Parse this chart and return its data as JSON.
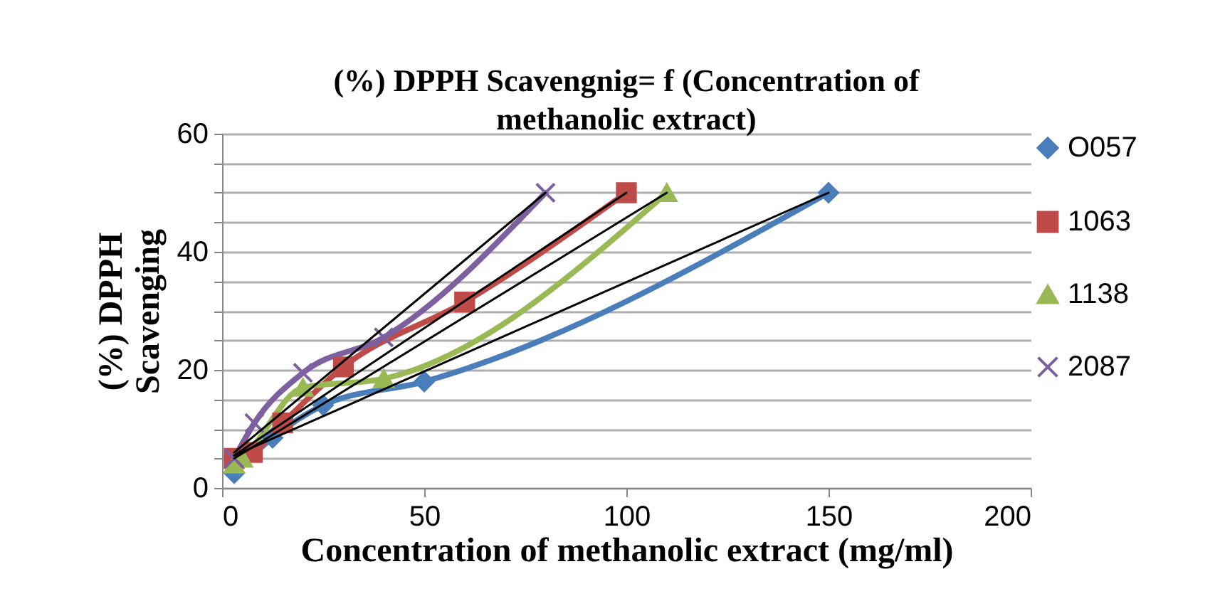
{
  "chart_data": {
    "type": "line",
    "title": "(%) DPPH Scavengnig= f (Concentration of methanolic extract)",
    "xlabel": "Concentration of methanolic extract (mg/ml)",
    "ylabel": "(%) DPPH Scavenging",
    "xlim": [
      0,
      200
    ],
    "xticks": [
      0,
      50,
      100,
      150,
      200
    ],
    "ylim": [
      0,
      60
    ],
    "yticks": [
      0,
      {
        "value": 5,
        "label": null
      },
      {
        "value": 10,
        "label": null
      },
      {
        "value": 15,
        "label": null
      },
      20,
      {
        "value": 25,
        "label": null
      },
      {
        "value": 30,
        "label": null
      },
      {
        "value": 35,
        "label": null
      },
      40,
      {
        "value": 45,
        "label": null
      },
      {
        "value": 50,
        "label": null
      },
      {
        "value": 55,
        "label": null
      },
      60
    ],
    "grid": "y",
    "legend": "right",
    "series": [
      {
        "name": "O057",
        "color": "#4a7ebb",
        "marker": "diamond",
        "x": [
          3,
          12.5,
          25,
          50,
          150
        ],
        "values": [
          2.5,
          8.5,
          14,
          18,
          50
        ]
      },
      {
        "name": "1063",
        "color": "#be4b48",
        "marker": "square",
        "x": [
          3,
          7.5,
          15,
          30,
          60,
          100
        ],
        "values": [
          5,
          6,
          11,
          20.5,
          31.5,
          50
        ]
      },
      {
        "name": "1138",
        "color": "#98b954",
        "marker": "triangle",
        "x": [
          3,
          5,
          20,
          40,
          110
        ],
        "values": [
          4,
          5,
          17,
          18.5,
          50
        ]
      },
      {
        "name": "2087",
        "color": "#7d60a0",
        "marker": "cross",
        "x": [
          3,
          8,
          20,
          40,
          80
        ],
        "values": [
          5,
          11,
          19.5,
          25.5,
          50
        ]
      },
      {
        "type": "line",
        "color": "#000000",
        "marker": "none",
        "x": [
          3,
          150
        ],
        "values": [
          5.5,
          50
        ]
      },
      {
        "type": "line",
        "color": "#000000",
        "marker": "none",
        "x": [
          3,
          100
        ],
        "values": [
          5.5,
          50
        ]
      },
      {
        "type": "line",
        "color": "#000000",
        "marker": "none",
        "x": [
          3,
          110
        ],
        "values": [
          5,
          50
        ]
      },
      {
        "type": "line",
        "color": "#000000",
        "marker": "none",
        "x": [
          3,
          80
        ],
        "values": [
          6,
          50
        ]
      }
    ]
  }
}
